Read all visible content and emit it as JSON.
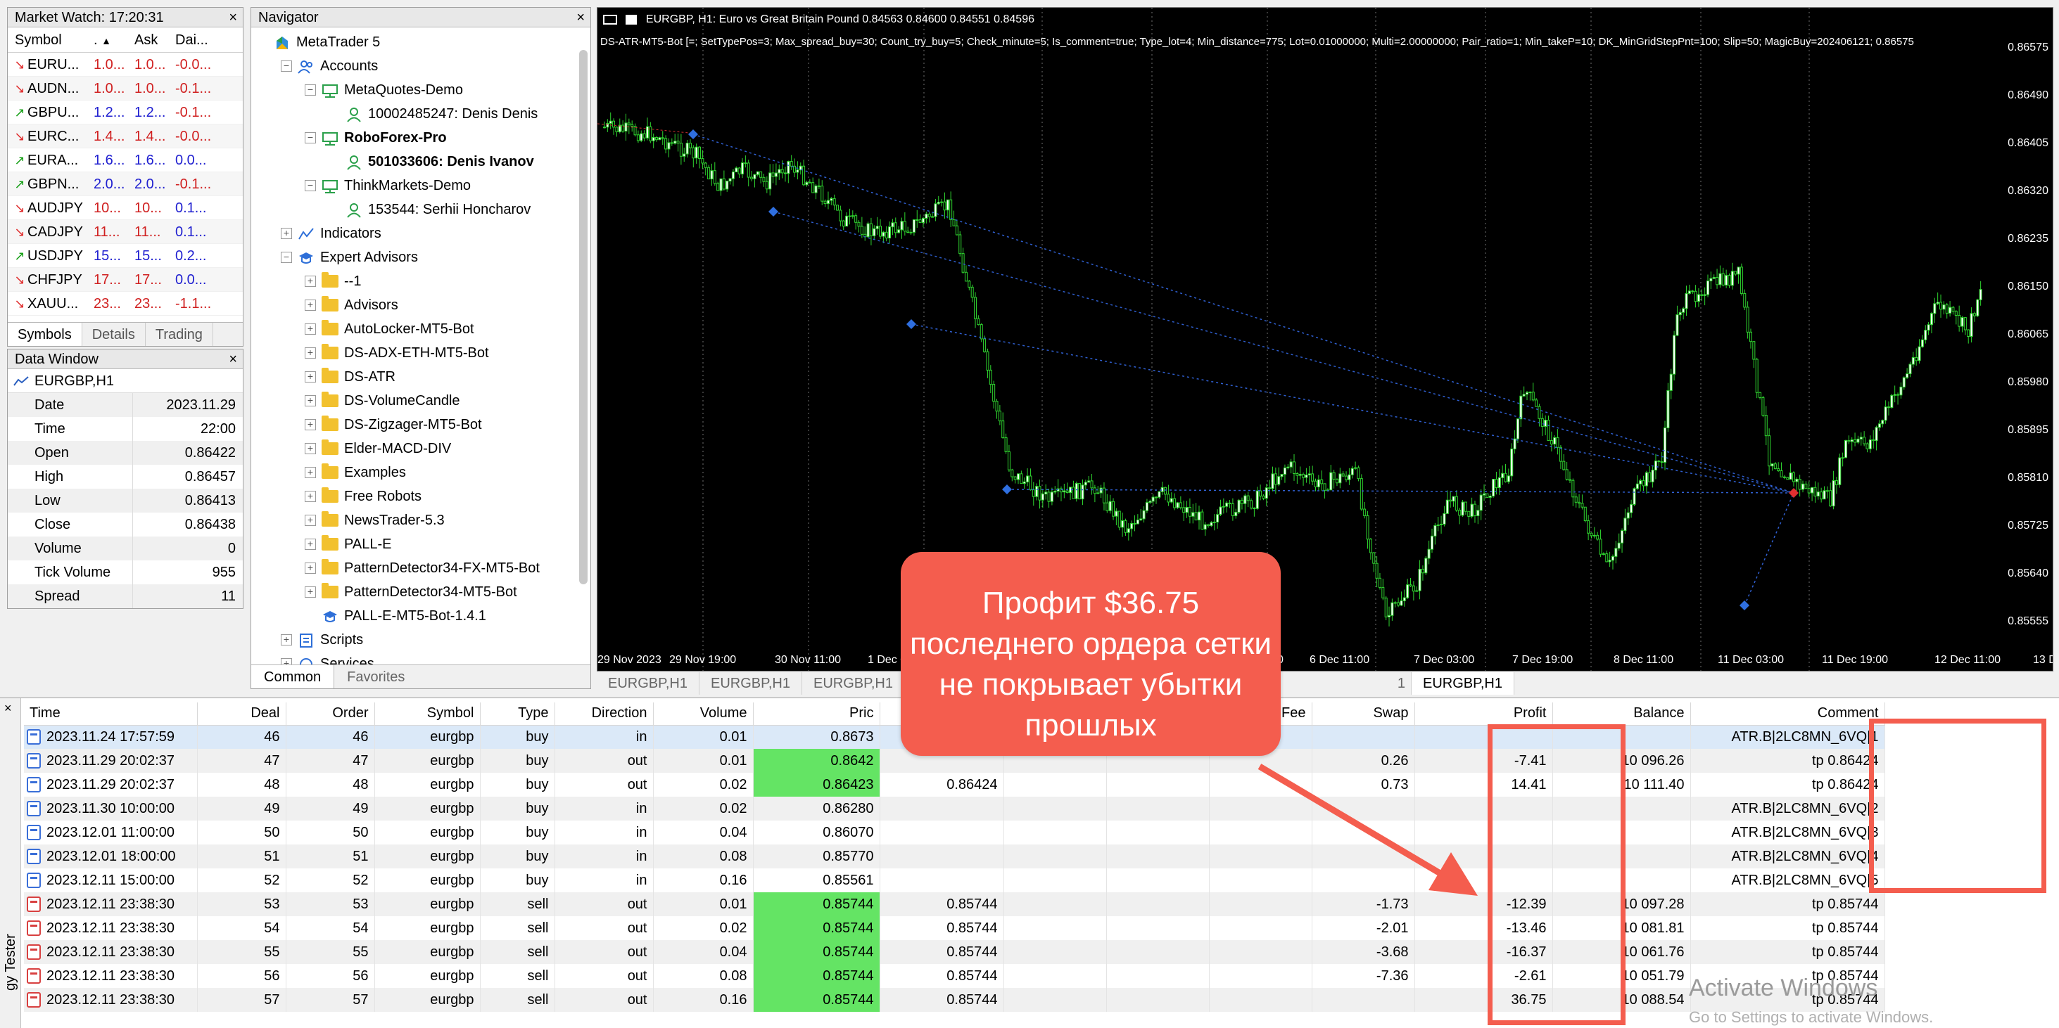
{
  "market_watch": {
    "title": "Market Watch: 17:20:31",
    "columns": [
      "Symbol",
      ".",
      "Ask",
      "Dai..."
    ],
    "rows": [
      {
        "symbol": "EURU...",
        "bid": "1.0...",
        "ask": "1.0...",
        "daily": "-0.0...",
        "dir": "dn"
      },
      {
        "symbol": "AUDN...",
        "bid": "1.0...",
        "ask": "1.0...",
        "daily": "-0.1...",
        "dir": "dn"
      },
      {
        "symbol": "GBPU...",
        "bid": "1.2...",
        "ask": "1.2...",
        "daily": "-0.1...",
        "dir": "up"
      },
      {
        "symbol": "EURC...",
        "bid": "1.4...",
        "ask": "1.4...",
        "daily": "-0.0...",
        "dir": "dn"
      },
      {
        "symbol": "EURA...",
        "bid": "1.6...",
        "ask": "1.6...",
        "daily": "0.0...",
        "dir": "up"
      },
      {
        "symbol": "GBPN...",
        "bid": "2.0...",
        "ask": "2.0...",
        "daily": "-0.1...",
        "dir": "up"
      },
      {
        "symbol": "AUDJPY",
        "bid": "10...",
        "ask": "10...",
        "daily": "0.1...",
        "dir": "dn"
      },
      {
        "symbol": "CADJPY",
        "bid": "11...",
        "ask": "11...",
        "daily": "0.1...",
        "dir": "dn"
      },
      {
        "symbol": "USDJPY",
        "bid": "15...",
        "ask": "15...",
        "daily": "0.2...",
        "dir": "up"
      },
      {
        "symbol": "CHFJPY",
        "bid": "17...",
        "ask": "17...",
        "daily": "0.0...",
        "dir": "dn"
      },
      {
        "symbol": "XAUU...",
        "bid": "23...",
        "ask": "23...",
        "daily": "-1.1...",
        "dir": "dn"
      }
    ],
    "tabs": [
      "Symbols",
      "Details",
      "Trading"
    ]
  },
  "data_window": {
    "title": "Data Window",
    "symbol": "EURGBP,H1",
    "rows": [
      {
        "label": "Date",
        "value": "2023.11.29"
      },
      {
        "label": "Time",
        "value": "22:00"
      },
      {
        "label": "Open",
        "value": "0.86422"
      },
      {
        "label": "High",
        "value": "0.86457"
      },
      {
        "label": "Low",
        "value": "0.86413"
      },
      {
        "label": "Close",
        "value": "0.86438"
      },
      {
        "label": "Volume",
        "value": "0"
      },
      {
        "label": "Tick Volume",
        "value": "955"
      },
      {
        "label": "Spread",
        "value": "11"
      }
    ]
  },
  "navigator": {
    "title": "Navigator",
    "items": [
      {
        "label": "MetaTrader 5",
        "level": 0,
        "icon": "mt5-icon",
        "exp": ""
      },
      {
        "label": "Accounts",
        "level": 1,
        "icon": "accounts-icon",
        "exp": "−"
      },
      {
        "label": "MetaQuotes-Demo",
        "level": 2,
        "icon": "server-icon",
        "exp": "−"
      },
      {
        "label": "10002485247: Denis Denis",
        "level": 3,
        "icon": "user-icon",
        "exp": ""
      },
      {
        "label": "RoboForex-Pro",
        "level": 2,
        "icon": "server-icon",
        "exp": "−",
        "bold": true
      },
      {
        "label": "501033606: Denis Ivanov",
        "level": 3,
        "icon": "user-icon",
        "exp": "",
        "bold": true
      },
      {
        "label": "ThinkMarkets-Demo",
        "level": 2,
        "icon": "server-icon",
        "exp": "−"
      },
      {
        "label": "153544: Serhii Honcharov",
        "level": 3,
        "icon": "user-icon",
        "exp": ""
      },
      {
        "label": "Indicators",
        "level": 1,
        "icon": "indicators-icon",
        "exp": "+"
      },
      {
        "label": "Expert Advisors",
        "level": 1,
        "icon": "expert-icon",
        "exp": "−"
      },
      {
        "label": "--1",
        "level": 2,
        "icon": "folder-icon",
        "exp": "+"
      },
      {
        "label": "Advisors",
        "level": 2,
        "icon": "folder-icon",
        "exp": "+"
      },
      {
        "label": "AutoLocker-MT5-Bot",
        "level": 2,
        "icon": "folder-icon",
        "exp": "+"
      },
      {
        "label": "DS-ADX-ETH-MT5-Bot",
        "level": 2,
        "icon": "folder-icon",
        "exp": "+"
      },
      {
        "label": "DS-ATR",
        "level": 2,
        "icon": "folder-icon",
        "exp": "+"
      },
      {
        "label": "DS-VolumeCandle",
        "level": 2,
        "icon": "folder-icon",
        "exp": "+"
      },
      {
        "label": "DS-Zigzager-MT5-Bot",
        "level": 2,
        "icon": "folder-icon",
        "exp": "+"
      },
      {
        "label": "Elder-MACD-DIV",
        "level": 2,
        "icon": "folder-icon",
        "exp": "+"
      },
      {
        "label": "Examples",
        "level": 2,
        "icon": "folder-icon",
        "exp": "+"
      },
      {
        "label": "Free Robots",
        "level": 2,
        "icon": "folder-icon",
        "exp": "+"
      },
      {
        "label": "NewsTrader-5.3",
        "level": 2,
        "icon": "folder-icon",
        "exp": "+"
      },
      {
        "label": "PALL-E",
        "level": 2,
        "icon": "folder-icon",
        "exp": "+"
      },
      {
        "label": "PatternDetector34-FX-MT5-Bot",
        "level": 2,
        "icon": "folder-icon",
        "exp": "+"
      },
      {
        "label": "PatternDetector34-MT5-Bot",
        "level": 2,
        "icon": "folder-icon",
        "exp": "+"
      },
      {
        "label": "PALL-E-MT5-Bot-1.4.1",
        "level": 2,
        "icon": "expert-icon",
        "exp": ""
      },
      {
        "label": "Scripts",
        "level": 1,
        "icon": "scripts-icon",
        "exp": "+"
      },
      {
        "label": "Services",
        "level": 1,
        "icon": "services-icon",
        "exp": "+"
      }
    ],
    "tabs": [
      "Common",
      "Favorites"
    ]
  },
  "chart": {
    "header": "EURGBP, H1:  Euro vs Great Britain Pound  0.84563 0.84600 0.84551 0.84596",
    "ea_line": "DS-ATR-MT5-Bot [=; SetTypePos=3; Max_spread_buy=30; Count_try_buy=5; Check_minute=5; Is_comment=true; Type_lot=4; Min_distance=775; Lot=0.01000000; Multi=2.00000000; Pair_ratio=1; Min_takeP=10; DK_MinGridStepPnt=100; Slip=50; MagicBuy=202406121; 0.86575",
    "price_labels": [
      "0.86575",
      "0.86490",
      "0.86405",
      "0.86320",
      "0.86235",
      "0.86150",
      "0.86065",
      "0.85980",
      "0.85895",
      "0.85810",
      "0.85725",
      "0.85640",
      "0.85555"
    ],
    "time_labels": [
      "29 Nov 2023",
      "29 Nov 19:00",
      "30 Nov 11:00",
      "1 Dec 0",
      "0",
      "6 Dec 11:00",
      "7 Dec 03:00",
      "7 Dec 19:00",
      "8 Dec 11:00",
      "11 Dec 03:00",
      "11 Dec 19:00",
      "12 Dec 11:00",
      "13 Dec 03:00"
    ],
    "tabs": [
      "EURGBP,H1",
      "EURGBP,H1",
      "EURGBP,H1",
      "1",
      "EURGBP,H1"
    ]
  },
  "toolbox": {
    "side_label": "gy Tester",
    "columns": [
      "Time",
      "Deal",
      "Order",
      "Symbol",
      "Type",
      "Direction",
      "Volume",
      "Pric",
      "",
      "",
      "",
      "Fee",
      "Swap",
      "Profit",
      "Balance",
      "Comment"
    ],
    "rows": [
      {
        "time": "2023.11.24 17:57:59",
        "deal": "46",
        "order": "46",
        "symbol": "eurgbp",
        "type": "buy",
        "dir": "in",
        "vol": "0.01",
        "price": "0.8673",
        "sl": "",
        "tp": "",
        "fee": "",
        "swap": "",
        "profit": "",
        "balance": "",
        "comment": "ATR.B|2LC8MN_6VQ|1",
        "icon": "buy",
        "hl": false,
        "sel": true
      },
      {
        "time": "2023.11.29 20:02:37",
        "deal": "47",
        "order": "47",
        "symbol": "eurgbp",
        "type": "buy",
        "dir": "out",
        "vol": "0.01",
        "price": "0.8642",
        "sl": "",
        "tp": "",
        "fee": "",
        "swap": "0.26",
        "profit": "-7.41",
        "balance": "10 096.26",
        "comment": "tp 0.86424",
        "icon": "buy",
        "hl": true
      },
      {
        "time": "2023.11.29 20:02:37",
        "deal": "48",
        "order": "48",
        "symbol": "eurgbp",
        "type": "buy",
        "dir": "out",
        "vol": "0.02",
        "price": "0.86423",
        "sl": "0.86424",
        "tp": "",
        "fee": "",
        "swap": "0.73",
        "profit": "14.41",
        "balance": "10 111.40",
        "comment": "tp 0.86424",
        "icon": "buy",
        "hl": true
      },
      {
        "time": "2023.11.30 10:00:00",
        "deal": "49",
        "order": "49",
        "symbol": "eurgbp",
        "type": "buy",
        "dir": "in",
        "vol": "0.02",
        "price": "0.86280",
        "sl": "",
        "tp": "",
        "fee": "",
        "swap": "",
        "profit": "",
        "balance": "",
        "comment": "ATR.B|2LC8MN_6VQ|2",
        "icon": "buy",
        "hl": false
      },
      {
        "time": "2023.12.01 11:00:00",
        "deal": "50",
        "order": "50",
        "symbol": "eurgbp",
        "type": "buy",
        "dir": "in",
        "vol": "0.04",
        "price": "0.86070",
        "sl": "",
        "tp": "",
        "fee": "",
        "swap": "",
        "profit": "",
        "balance": "",
        "comment": "ATR.B|2LC8MN_6VQ|3",
        "icon": "buy",
        "hl": false
      },
      {
        "time": "2023.12.01 18:00:00",
        "deal": "51",
        "order": "51",
        "symbol": "eurgbp",
        "type": "buy",
        "dir": "in",
        "vol": "0.08",
        "price": "0.85770",
        "sl": "",
        "tp": "",
        "fee": "",
        "swap": "",
        "profit": "",
        "balance": "",
        "comment": "ATR.B|2LC8MN_6VQ|4",
        "icon": "buy",
        "hl": false
      },
      {
        "time": "2023.12.11 15:00:00",
        "deal": "52",
        "order": "52",
        "symbol": "eurgbp",
        "type": "buy",
        "dir": "in",
        "vol": "0.16",
        "price": "0.85561",
        "sl": "",
        "tp": "",
        "fee": "",
        "swap": "",
        "profit": "",
        "balance": "",
        "comment": "ATR.B|2LC8MN_6VQ|5",
        "icon": "buy",
        "hl": false
      },
      {
        "time": "2023.12.11 23:38:30",
        "deal": "53",
        "order": "53",
        "symbol": "eurgbp",
        "type": "sell",
        "dir": "out",
        "vol": "0.01",
        "price": "0.85744",
        "sl": "0.85744",
        "tp": "",
        "fee": "",
        "swap": "-1.73",
        "profit": "-12.39",
        "balance": "10 097.28",
        "comment": "tp 0.85744",
        "icon": "sell",
        "hl": true
      },
      {
        "time": "2023.12.11 23:38:30",
        "deal": "54",
        "order": "54",
        "symbol": "eurgbp",
        "type": "sell",
        "dir": "out",
        "vol": "0.02",
        "price": "0.85744",
        "sl": "0.85744",
        "tp": "",
        "fee": "",
        "swap": "-2.01",
        "profit": "-13.46",
        "balance": "10 081.81",
        "comment": "tp 0.85744",
        "icon": "sell",
        "hl": true
      },
      {
        "time": "2023.12.11 23:38:30",
        "deal": "55",
        "order": "55",
        "symbol": "eurgbp",
        "type": "sell",
        "dir": "out",
        "vol": "0.04",
        "price": "0.85744",
        "sl": "0.85744",
        "tp": "",
        "fee": "",
        "swap": "-3.68",
        "profit": "-16.37",
        "balance": "10 061.76",
        "comment": "tp 0.85744",
        "icon": "sell",
        "hl": true
      },
      {
        "time": "2023.12.11 23:38:30",
        "deal": "56",
        "order": "56",
        "symbol": "eurgbp",
        "type": "sell",
        "dir": "out",
        "vol": "0.08",
        "price": "0.85744",
        "sl": "0.85744",
        "tp": "",
        "fee": "",
        "swap": "-7.36",
        "profit": "-2.61",
        "balance": "10 051.79",
        "comment": "tp 0.85744",
        "icon": "sell",
        "hl": true
      },
      {
        "time": "2023.12.11 23:38:30",
        "deal": "57",
        "order": "57",
        "symbol": "eurgbp",
        "type": "sell",
        "dir": "out",
        "vol": "0.16",
        "price": "0.85744",
        "sl": "0.85744",
        "tp": "",
        "fee": "",
        "swap": "",
        "profit": "36.75",
        "balance": "10 088.54",
        "comment": "tp 0.85744",
        "icon": "sell",
        "hl": true
      }
    ]
  },
  "annotation": {
    "callout": "Профит $36.75 последнего ордера сетки не покрывает убытки прошлых",
    "color": "#f45d4e"
  },
  "watermark": {
    "line1": "Activate Windows",
    "line2": "Go to Settings to activate Windows."
  }
}
